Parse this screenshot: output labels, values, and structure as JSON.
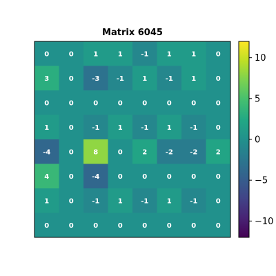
{
  "chart_data": {
    "type": "heatmap",
    "title": "Matrix 6045",
    "colormap": "viridis",
    "vmin": -12,
    "vmax": 12,
    "rows": 8,
    "cols": 8,
    "values": [
      [
        0,
        0,
        1,
        1,
        -1,
        1,
        1,
        0
      ],
      [
        3,
        0,
        -3,
        -1,
        1,
        -1,
        1,
        0
      ],
      [
        0,
        0,
        0,
        0,
        0,
        0,
        0,
        0
      ],
      [
        1,
        0,
        -1,
        1,
        -1,
        1,
        -1,
        0
      ],
      [
        -4,
        0,
        8,
        0,
        2,
        -2,
        -2,
        2
      ],
      [
        4,
        0,
        -4,
        0,
        0,
        0,
        0,
        0
      ],
      [
        1,
        0,
        -1,
        1,
        -1,
        1,
        -1,
        0
      ],
      [
        0,
        0,
        0,
        0,
        0,
        0,
        0,
        0
      ]
    ],
    "colorbar": {
      "ticks": [
        10,
        5,
        0,
        -5,
        -10
      ],
      "tick_labels": [
        "10",
        "5",
        "0",
        "−5",
        "−10"
      ]
    },
    "cell_label_color": "#ffffff"
  }
}
